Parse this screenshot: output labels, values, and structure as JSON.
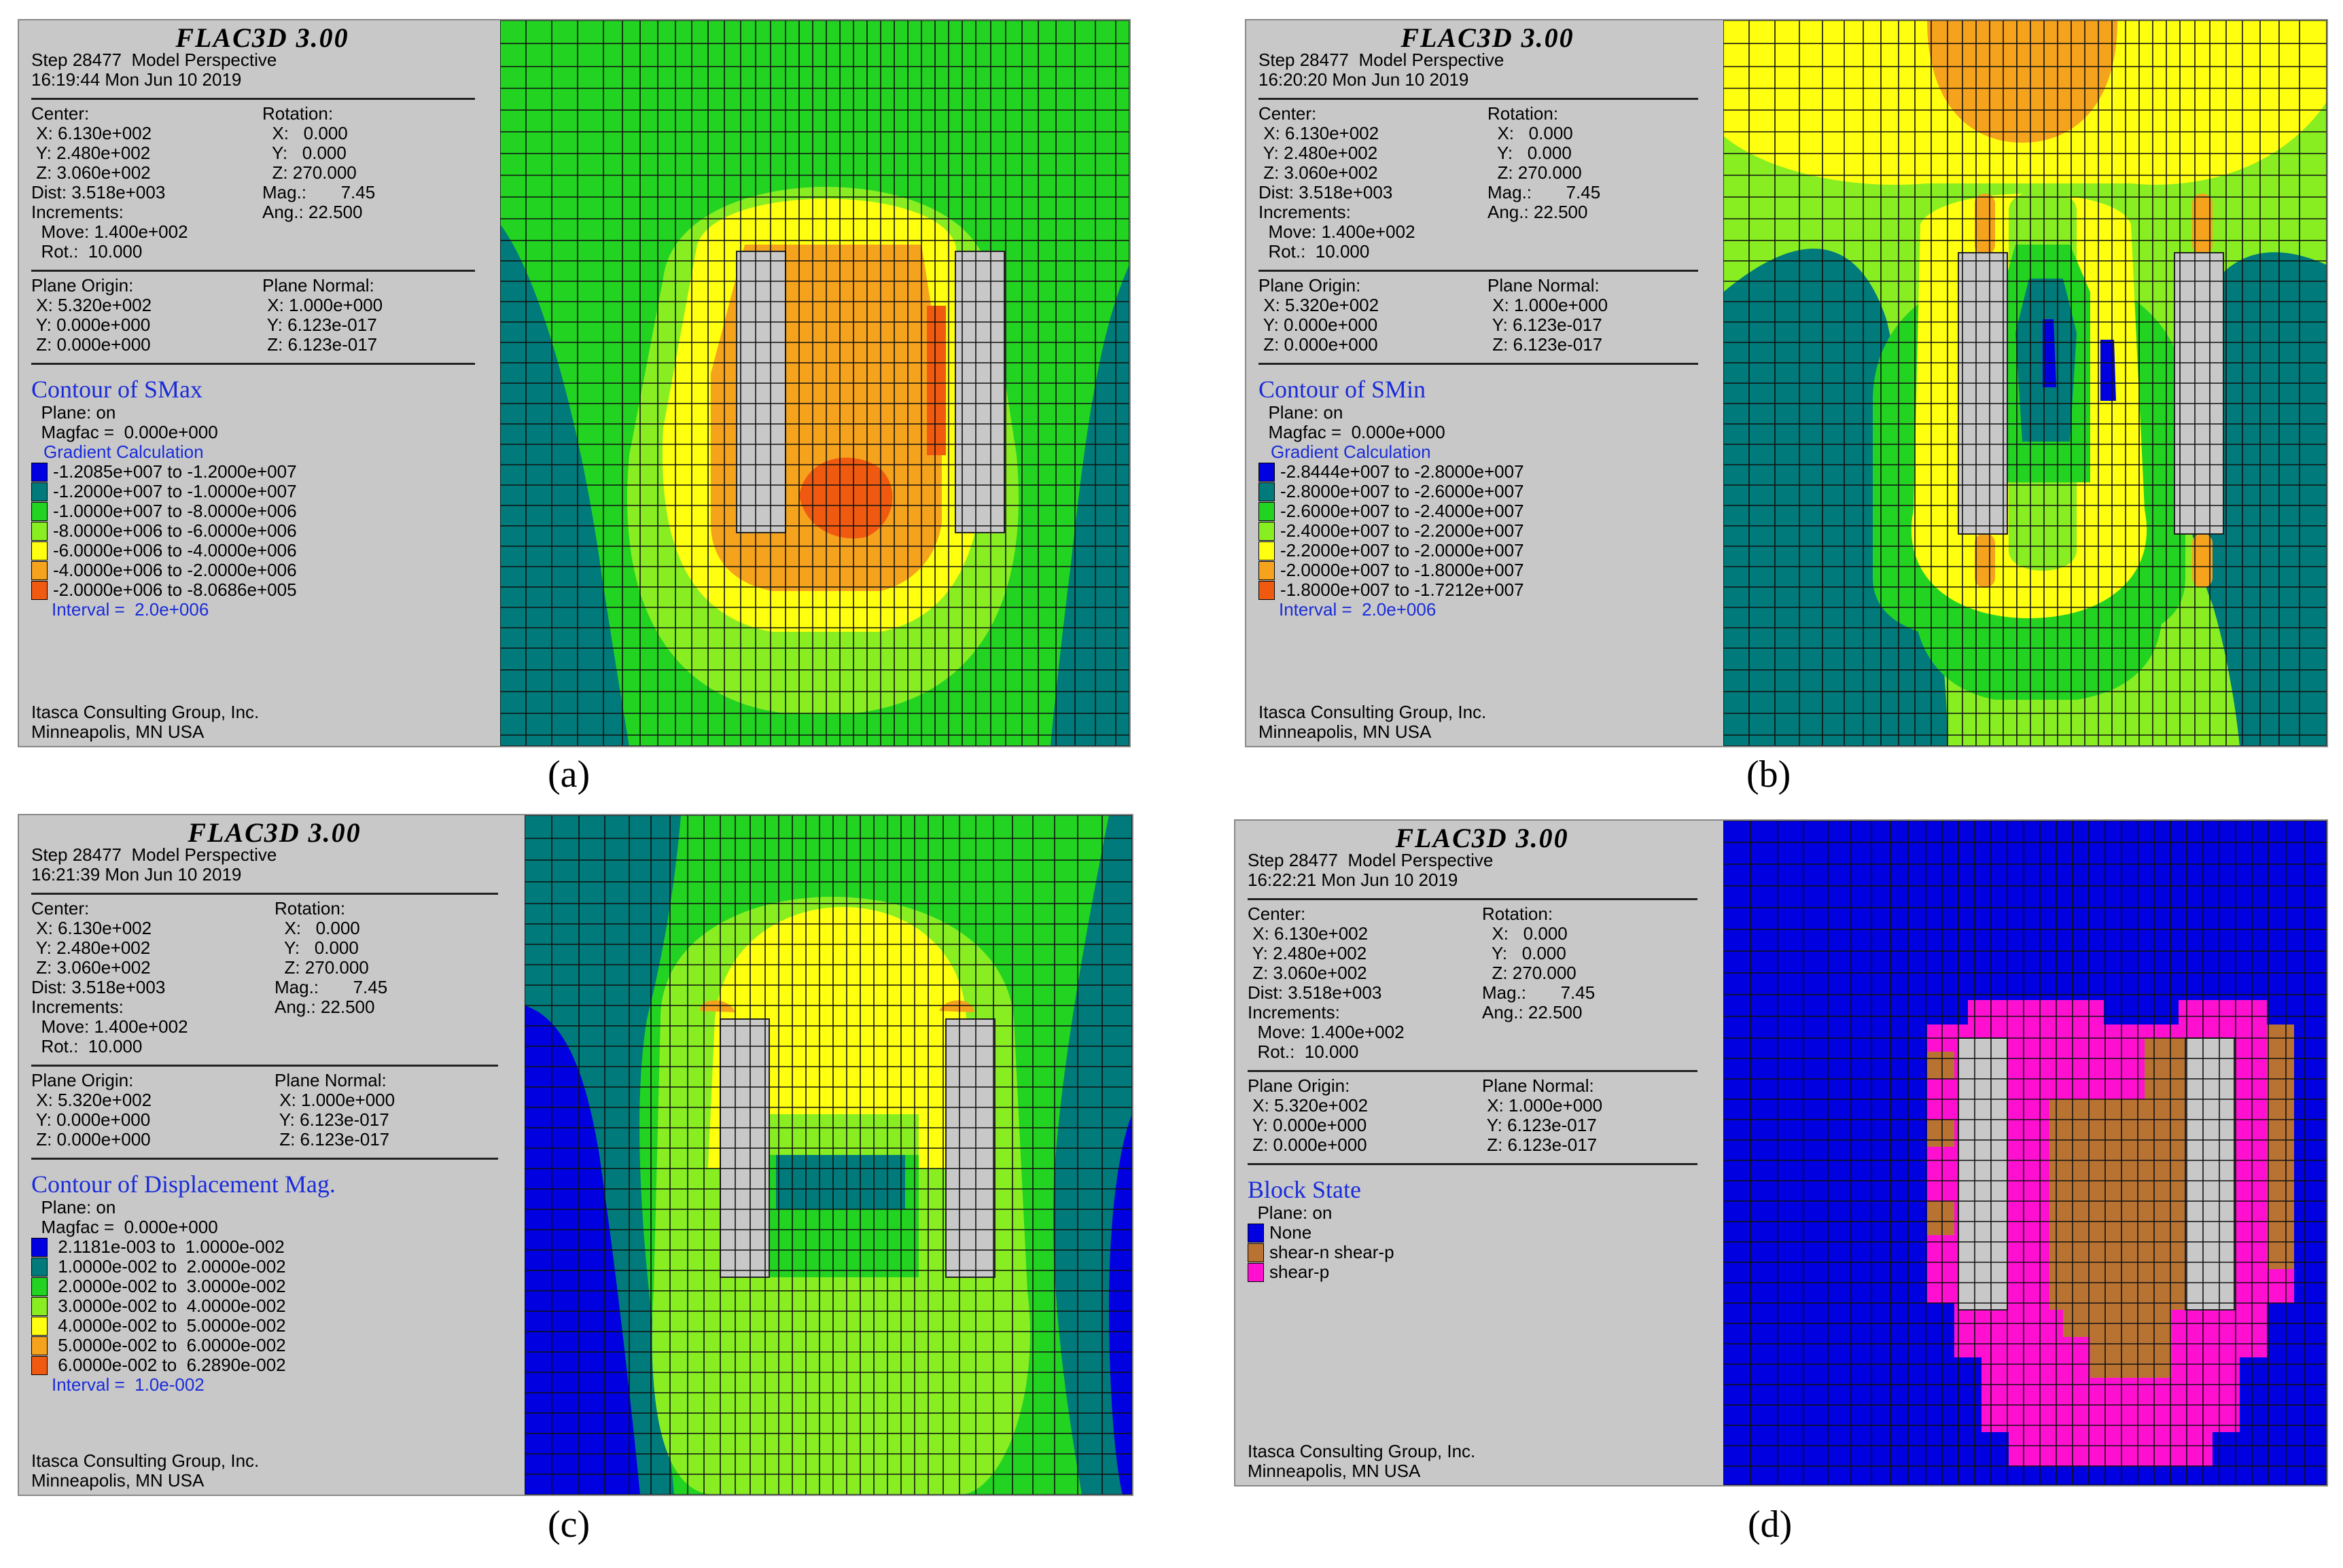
{
  "panels": [
    {
      "brand": "FLAC3D 3.00",
      "step": "Step 28477  Model Perspective",
      "time": "16:19:44 Mon Jun 10 2019",
      "center": [
        "Center:",
        " X: 6.130e+002",
        " Y: 2.480e+002",
        " Z: 3.060e+002",
        "Dist: 3.518e+003",
        "Increments:",
        "  Move: 1.400e+002",
        "  Rot.:  10.000"
      ],
      "rotation": [
        "Rotation:",
        "  X:   0.000",
        "  Y:   0.000",
        "  Z: 270.000",
        "Mag.:       7.45",
        "Ang.: 22.500"
      ],
      "plane_origin": [
        "Plane Origin:",
        " X: 5.320e+002",
        " Y: 0.000e+000",
        " Z: 0.000e+000"
      ],
      "plane_normal": [
        "Plane Normal:",
        " X: 1.000e+000",
        " Y: 6.123e-017",
        " Z: 6.123e-017"
      ],
      "contour_title": "Contour of SMax",
      "plane_on": "  Plane: on",
      "magfac": "  Magfac =  0.000e+000",
      "gradient": "Gradient Calculation",
      "legend": [
        {
          "color": "#0000e0",
          "label": "-1.2085e+007 to -1.2000e+007"
        },
        {
          "color": "#007a7a",
          "label": "-1.2000e+007 to -1.0000e+007"
        },
        {
          "color": "#22d322",
          "label": "-1.0000e+007 to -8.0000e+006"
        },
        {
          "color": "#88ee22",
          "label": "-8.0000e+006 to -6.0000e+006"
        },
        {
          "color": "#ffff10",
          "label": "-6.0000e+006 to -4.0000e+006"
        },
        {
          "color": "#f5a21c",
          "label": "-4.0000e+006 to -2.0000e+006"
        },
        {
          "color": "#f05a10",
          "label": "-2.0000e+006 to -8.0686e+005"
        }
      ],
      "interval": "Interval =  2.0e+006",
      "footer1": "Itasca Consulting Group, Inc.",
      "footer2": "Minneapolis, MN  USA",
      "caption": "(a)"
    },
    {
      "brand": "FLAC3D 3.00",
      "step": "Step 28477  Model Perspective",
      "time": "16:20:20 Mon Jun 10 2019",
      "center": [
        "Center:",
        " X: 6.130e+002",
        " Y: 2.480e+002",
        " Z: 3.060e+002",
        "Dist: 3.518e+003",
        "Increments:",
        "  Move: 1.400e+002",
        "  Rot.:  10.000"
      ],
      "rotation": [
        "Rotation:",
        "  X:   0.000",
        "  Y:   0.000",
        "  Z: 270.000",
        "Mag.:       7.45",
        "Ang.: 22.500"
      ],
      "plane_origin": [
        "Plane Origin:",
        " X: 5.320e+002",
        " Y: 0.000e+000",
        " Z: 0.000e+000"
      ],
      "plane_normal": [
        "Plane Normal:",
        " X: 1.000e+000",
        " Y: 6.123e-017",
        " Z: 6.123e-017"
      ],
      "contour_title": "Contour of SMin",
      "plane_on": "  Plane: on",
      "magfac": "  Magfac =  0.000e+000",
      "gradient": "Gradient Calculation",
      "legend": [
        {
          "color": "#0000e0",
          "label": "-2.8444e+007 to -2.8000e+007"
        },
        {
          "color": "#007a7a",
          "label": "-2.8000e+007 to -2.6000e+007"
        },
        {
          "color": "#22d322",
          "label": "-2.6000e+007 to -2.4000e+007"
        },
        {
          "color": "#88ee22",
          "label": "-2.4000e+007 to -2.2000e+007"
        },
        {
          "color": "#ffff10",
          "label": "-2.2000e+007 to -2.0000e+007"
        },
        {
          "color": "#f5a21c",
          "label": "-2.0000e+007 to -1.8000e+007"
        },
        {
          "color": "#f05a10",
          "label": "-1.8000e+007 to -1.7212e+007"
        }
      ],
      "interval": "Interval =  2.0e+006",
      "footer1": "Itasca Consulting Group, Inc.",
      "footer2": "Minneapolis, MN  USA",
      "caption": "(b)"
    },
    {
      "brand": "FLAC3D 3.00",
      "step": "Step 28477  Model Perspective",
      "time": "16:21:39 Mon Jun 10 2019",
      "center": [
        "Center:",
        " X: 6.130e+002",
        " Y: 2.480e+002",
        " Z: 3.060e+002",
        "Dist: 3.518e+003",
        "Increments:",
        "  Move: 1.400e+002",
        "  Rot.:  10.000"
      ],
      "rotation": [
        "Rotation:",
        "  X:   0.000",
        "  Y:   0.000",
        "  Z: 270.000",
        "Mag.:       7.45",
        "Ang.: 22.500"
      ],
      "plane_origin": [
        "Plane Origin:",
        " X: 5.320e+002",
        " Y: 0.000e+000",
        " Z: 0.000e+000"
      ],
      "plane_normal": [
        "Plane Normal:",
        " X: 1.000e+000",
        " Y: 6.123e-017",
        " Z: 6.123e-017"
      ],
      "contour_title": "Contour of Displacement Mag.",
      "plane_on": "  Plane: on",
      "magfac": "  Magfac =  0.000e+000",
      "gradient": "",
      "legend": [
        {
          "color": "#0000e0",
          "label": " 2.1181e-003 to  1.0000e-002"
        },
        {
          "color": "#007a7a",
          "label": " 1.0000e-002 to  2.0000e-002"
        },
        {
          "color": "#22d322",
          "label": " 2.0000e-002 to  3.0000e-002"
        },
        {
          "color": "#88ee22",
          "label": " 3.0000e-002 to  4.0000e-002"
        },
        {
          "color": "#ffff10",
          "label": " 4.0000e-002 to  5.0000e-002"
        },
        {
          "color": "#f5a21c",
          "label": " 5.0000e-002 to  6.0000e-002"
        },
        {
          "color": "#f05a10",
          "label": " 6.0000e-002 to  6.2890e-002"
        }
      ],
      "interval": "Interval =  1.0e-002",
      "footer1": "Itasca Consulting Group, Inc.",
      "footer2": "Minneapolis, MN  USA",
      "caption": "(c)"
    },
    {
      "brand": "FLAC3D 3.00",
      "step": "Step 28477  Model Perspective",
      "time": "16:22:21 Mon Jun 10 2019",
      "center": [
        "Center:",
        " X: 6.130e+002",
        " Y: 2.480e+002",
        " Z: 3.060e+002",
        "Dist: 3.518e+003",
        "Increments:",
        "  Move: 1.400e+002",
        "  Rot.:  10.000"
      ],
      "rotation": [
        "Rotation:",
        "  X:   0.000",
        "  Y:   0.000",
        "  Z: 270.000",
        "Mag.:       7.45",
        "Ang.: 22.500"
      ],
      "plane_origin": [
        "Plane Origin:",
        " X: 5.320e+002",
        " Y: 0.000e+000",
        " Z: 0.000e+000"
      ],
      "plane_normal": [
        "Plane Normal:",
        " X: 1.000e+000",
        " Y: 6.123e-017",
        " Z: 6.123e-017"
      ],
      "contour_title": "Block State",
      "plane_on": "  Plane: on",
      "magfac": "",
      "gradient": "",
      "legend": [
        {
          "color": "#0000e0",
          "label": "None"
        },
        {
          "color": "#b87333",
          "label": "shear-n shear-p"
        },
        {
          "color": "#ff10d0",
          "label": "shear-p"
        }
      ],
      "interval": "",
      "footer1": "Itasca Consulting Group, Inc.",
      "footer2": "Minneapolis, MN  USA",
      "caption": "(d)"
    }
  ]
}
